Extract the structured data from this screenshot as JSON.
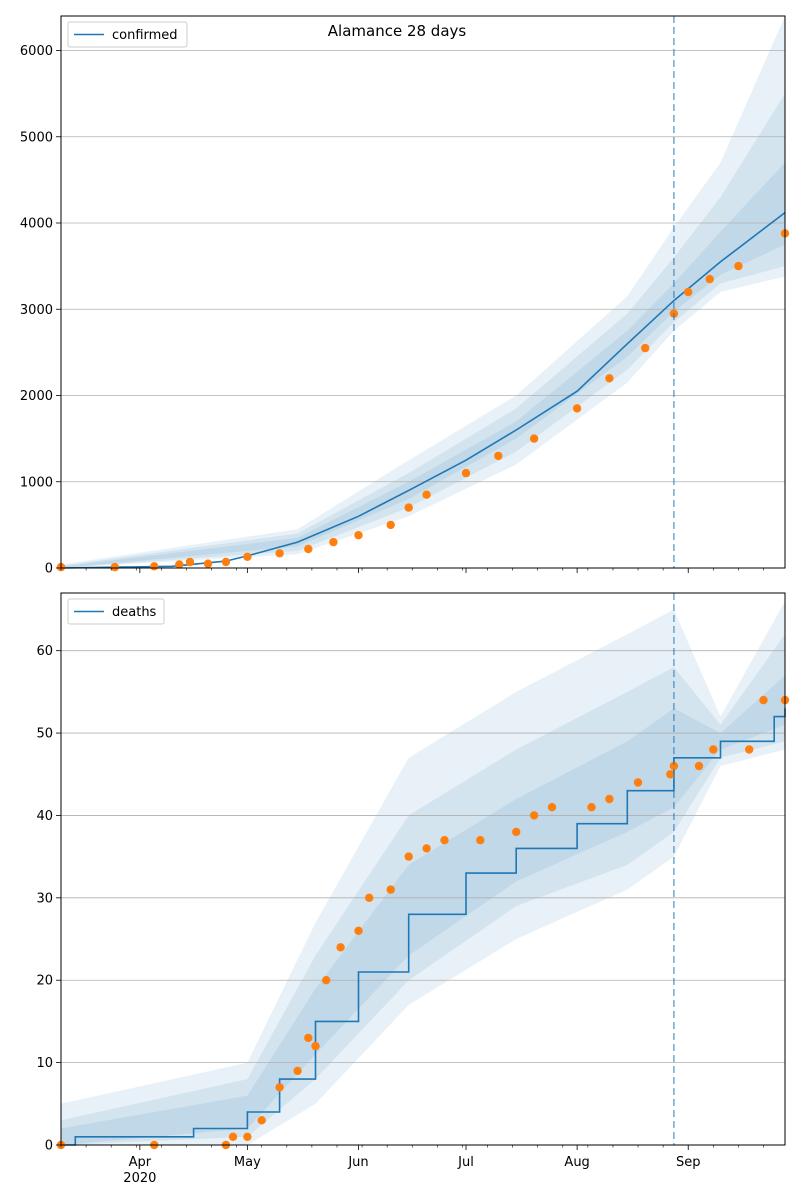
{
  "figure": {
    "title": "Alamance 28 days"
  },
  "chart_data": [
    {
      "type": "line",
      "legend": {
        "label": "confirmed",
        "placement": "top-left"
      },
      "title": "Alamance 28 days",
      "ylim": [
        0,
        6400
      ],
      "yticks": [
        0,
        1000,
        2000,
        3000,
        4000,
        5000,
        6000
      ],
      "ytick_labels": [
        "0",
        "1000",
        "2000",
        "3000",
        "4000",
        "5000",
        "6000"
      ],
      "grid": "y",
      "series": [
        {
          "name": "confirmed",
          "kind": "model-line",
          "color": "#1f77b4",
          "points": [
            [
              "2020-03-10",
              0
            ],
            [
              "2020-04-10",
              20
            ],
            [
              "2020-04-25",
              80
            ],
            [
              "2020-05-01",
              140
            ],
            [
              "2020-05-15",
              300
            ],
            [
              "2020-06-01",
              600
            ],
            [
              "2020-06-15",
              900
            ],
            [
              "2020-07-01",
              1250
            ],
            [
              "2020-07-15",
              1600
            ],
            [
              "2020-08-01",
              2050
            ],
            [
              "2020-08-15",
              2600
            ],
            [
              "2020-08-28",
              3100
            ],
            [
              "2020-09-10",
              3550
            ],
            [
              "2020-09-28",
              4120
            ]
          ]
        }
      ],
      "observed": {
        "color": "#ff7f0e",
        "points": [
          [
            "2020-03-10",
            10
          ],
          [
            "2020-03-25",
            10
          ],
          [
            "2020-04-05",
            20
          ],
          [
            "2020-04-12",
            40
          ],
          [
            "2020-04-15",
            70
          ],
          [
            "2020-04-20",
            50
          ],
          [
            "2020-04-25",
            70
          ],
          [
            "2020-05-01",
            130
          ],
          [
            "2020-05-10",
            170
          ],
          [
            "2020-05-18",
            220
          ],
          [
            "2020-05-25",
            300
          ],
          [
            "2020-06-01",
            380
          ],
          [
            "2020-06-10",
            500
          ],
          [
            "2020-06-15",
            700
          ],
          [
            "2020-06-20",
            850
          ],
          [
            "2020-07-01",
            1100
          ],
          [
            "2020-07-10",
            1300
          ],
          [
            "2020-07-20",
            1500
          ],
          [
            "2020-08-01",
            1850
          ],
          [
            "2020-08-10",
            2200
          ],
          [
            "2020-08-20",
            2550
          ],
          [
            "2020-08-28",
            2950
          ],
          [
            "2020-09-01",
            3200
          ],
          [
            "2020-09-07",
            3350
          ],
          [
            "2020-09-15",
            3500
          ],
          [
            "2020-09-28",
            3880
          ]
        ]
      },
      "bands": {
        "color": "#1f77b4",
        "levels": [
          {
            "lower": [
              [
                "2020-03-10",
                0
              ],
              [
                "2020-05-15",
                160
              ],
              [
                "2020-06-15",
                600
              ],
              [
                "2020-07-15",
                1200
              ],
              [
                "2020-08-15",
                2150
              ],
              [
                "2020-08-28",
                2750
              ],
              [
                "2020-09-10",
                3200
              ],
              [
                "2020-09-28",
                3380
              ]
            ],
            "upper": [
              [
                "2020-03-10",
                40
              ],
              [
                "2020-05-15",
                450
              ],
              [
                "2020-06-15",
                1250
              ],
              [
                "2020-07-15",
                2000
              ],
              [
                "2020-08-15",
                3150
              ],
              [
                "2020-08-28",
                3950
              ],
              [
                "2020-09-10",
                4700
              ],
              [
                "2020-09-28",
                6400
              ]
            ]
          },
          {
            "lower": [
              [
                "2020-03-10",
                0
              ],
              [
                "2020-05-15",
                200
              ],
              [
                "2020-06-15",
                700
              ],
              [
                "2020-07-15",
                1350
              ],
              [
                "2020-08-15",
                2300
              ],
              [
                "2020-08-28",
                2850
              ],
              [
                "2020-09-10",
                3300
              ],
              [
                "2020-09-28",
                3500
              ]
            ],
            "upper": [
              [
                "2020-03-10",
                25
              ],
              [
                "2020-05-15",
                400
              ],
              [
                "2020-06-15",
                1100
              ],
              [
                "2020-07-15",
                1850
              ],
              [
                "2020-08-15",
                2950
              ],
              [
                "2020-08-28",
                3600
              ],
              [
                "2020-09-10",
                4300
              ],
              [
                "2020-09-28",
                5500
              ]
            ]
          },
          {
            "lower": [
              [
                "2020-03-10",
                0
              ],
              [
                "2020-05-15",
                250
              ],
              [
                "2020-06-15",
                800
              ],
              [
                "2020-07-15",
                1500
              ],
              [
                "2020-08-15",
                2450
              ],
              [
                "2020-08-28",
                2970
              ],
              [
                "2020-09-10",
                3400
              ],
              [
                "2020-09-28",
                3750
              ]
            ],
            "upper": [
              [
                "2020-03-10",
                15
              ],
              [
                "2020-05-15",
                350
              ],
              [
                "2020-06-15",
                1000
              ],
              [
                "2020-07-15",
                1700
              ],
              [
                "2020-08-15",
                2750
              ],
              [
                "2020-08-28",
                3300
              ],
              [
                "2020-09-10",
                3900
              ],
              [
                "2020-09-28",
                4700
              ]
            ]
          }
        ]
      }
    },
    {
      "type": "line",
      "legend": {
        "label": "deaths",
        "placement": "top-left"
      },
      "ylim": [
        0,
        67
      ],
      "yticks": [
        0,
        10,
        20,
        30,
        40,
        50,
        60
      ],
      "ytick_labels": [
        "0",
        "10",
        "20",
        "30",
        "40",
        "50",
        "60"
      ],
      "grid": "y",
      "series": [
        {
          "name": "deaths",
          "kind": "model-line",
          "color": "#1f77b4",
          "points": [
            [
              "2020-03-10",
              0
            ],
            [
              "2020-03-14",
              1
            ],
            [
              "2020-04-15",
              1
            ],
            [
              "2020-04-16",
              2
            ],
            [
              "2020-04-26",
              2
            ],
            [
              "2020-05-01",
              4
            ],
            [
              "2020-05-10",
              8
            ],
            [
              "2020-05-20",
              15
            ],
            [
              "2020-06-01",
              21
            ],
            [
              "2020-06-15",
              28
            ],
            [
              "2020-07-01",
              33
            ],
            [
              "2020-07-15",
              36
            ],
            [
              "2020-08-01",
              39
            ],
            [
              "2020-08-15",
              43
            ],
            [
              "2020-08-28",
              47
            ],
            [
              "2020-09-10",
              49
            ],
            [
              "2020-09-25",
              52
            ],
            [
              "2020-09-28",
              53
            ]
          ]
        }
      ],
      "observed": {
        "color": "#ff7f0e",
        "points": [
          [
            "2020-03-10",
            0
          ],
          [
            "2020-04-05",
            0
          ],
          [
            "2020-04-25",
            0
          ],
          [
            "2020-04-27",
            1
          ],
          [
            "2020-05-01",
            1
          ],
          [
            "2020-05-05",
            3
          ],
          [
            "2020-05-10",
            7
          ],
          [
            "2020-05-15",
            9
          ],
          [
            "2020-05-18",
            13
          ],
          [
            "2020-05-20",
            12
          ],
          [
            "2020-05-23",
            20
          ],
          [
            "2020-05-27",
            24
          ],
          [
            "2020-06-01",
            26
          ],
          [
            "2020-06-04",
            30
          ],
          [
            "2020-06-10",
            31
          ],
          [
            "2020-06-15",
            35
          ],
          [
            "2020-06-20",
            36
          ],
          [
            "2020-06-25",
            37
          ],
          [
            "2020-07-05",
            37
          ],
          [
            "2020-07-15",
            38
          ],
          [
            "2020-07-20",
            40
          ],
          [
            "2020-07-25",
            41
          ],
          [
            "2020-08-05",
            41
          ],
          [
            "2020-08-10",
            42
          ],
          [
            "2020-08-18",
            44
          ],
          [
            "2020-08-27",
            45
          ],
          [
            "2020-08-28",
            46
          ],
          [
            "2020-09-04",
            46
          ],
          [
            "2020-09-08",
            48
          ],
          [
            "2020-09-18",
            48
          ],
          [
            "2020-09-22",
            54
          ],
          [
            "2020-09-28",
            54
          ]
        ]
      },
      "bands": {
        "color": "#1f77b4",
        "levels": [
          {
            "lower": [
              [
                "2020-03-10",
                0
              ],
              [
                "2020-05-01",
                0
              ],
              [
                "2020-05-20",
                5
              ],
              [
                "2020-06-15",
                17
              ],
              [
                "2020-07-15",
                25
              ],
              [
                "2020-08-15",
                31
              ],
              [
                "2020-08-28",
                35
              ],
              [
                "2020-09-10",
                46
              ],
              [
                "2020-09-28",
                48
              ]
            ],
            "upper": [
              [
                "2020-03-10",
                5
              ],
              [
                "2020-05-01",
                10
              ],
              [
                "2020-05-20",
                27
              ],
              [
                "2020-06-15",
                47
              ],
              [
                "2020-07-15",
                55
              ],
              [
                "2020-08-15",
                62
              ],
              [
                "2020-08-28",
                65
              ],
              [
                "2020-09-10",
                52
              ],
              [
                "2020-09-28",
                66
              ]
            ]
          },
          {
            "lower": [
              [
                "2020-03-10",
                0
              ],
              [
                "2020-05-01",
                1
              ],
              [
                "2020-05-20",
                8
              ],
              [
                "2020-06-15",
                20
              ],
              [
                "2020-07-15",
                29
              ],
              [
                "2020-08-15",
                34
              ],
              [
                "2020-08-28",
                38
              ],
              [
                "2020-09-10",
                47
              ],
              [
                "2020-09-28",
                49
              ]
            ],
            "upper": [
              [
                "2020-03-10",
                3
              ],
              [
                "2020-05-01",
                8
              ],
              [
                "2020-05-20",
                23
              ],
              [
                "2020-06-15",
                40
              ],
              [
                "2020-07-15",
                48
              ],
              [
                "2020-08-15",
                55
              ],
              [
                "2020-08-28",
                58
              ],
              [
                "2020-09-10",
                51
              ],
              [
                "2020-09-28",
                62
              ]
            ]
          },
          {
            "lower": [
              [
                "2020-03-10",
                0
              ],
              [
                "2020-05-01",
                2
              ],
              [
                "2020-05-20",
                11
              ],
              [
                "2020-06-15",
                23
              ],
              [
                "2020-07-15",
                32
              ],
              [
                "2020-08-15",
                38
              ],
              [
                "2020-08-28",
                41
              ],
              [
                "2020-09-10",
                48
              ],
              [
                "2020-09-28",
                51
              ]
            ],
            "upper": [
              [
                "2020-03-10",
                2
              ],
              [
                "2020-05-01",
                6
              ],
              [
                "2020-05-20",
                19
              ],
              [
                "2020-06-15",
                34
              ],
              [
                "2020-07-15",
                42
              ],
              [
                "2020-08-15",
                49
              ],
              [
                "2020-08-28",
                53
              ],
              [
                "2020-09-10",
                50
              ],
              [
                "2020-09-28",
                57
              ]
            ]
          }
        ]
      }
    }
  ],
  "x_axis": {
    "shared": true,
    "range": [
      "2020-03-10",
      "2020-09-28"
    ],
    "major_ticks": [
      {
        "date": "2020-04-01",
        "label": "Apr"
      },
      {
        "date": "2020-05-01",
        "label": "May"
      },
      {
        "date": "2020-06-01",
        "label": "Jun"
      },
      {
        "date": "2020-07-01",
        "label": "Jul"
      },
      {
        "date": "2020-08-01",
        "label": "Aug"
      },
      {
        "date": "2020-09-01",
        "label": "Sep"
      }
    ],
    "minor_ticks_every_days": 7,
    "year_label": "2020",
    "year_label_under": "Apr"
  },
  "forecast_marker": {
    "date": "2020-08-28",
    "style": "dashed",
    "color": "#1f77b4"
  },
  "colors": {
    "model": "#1f77b4",
    "observed": "#ff7f0e",
    "grid": "#b0b0b0",
    "band": "#1f77b4"
  }
}
